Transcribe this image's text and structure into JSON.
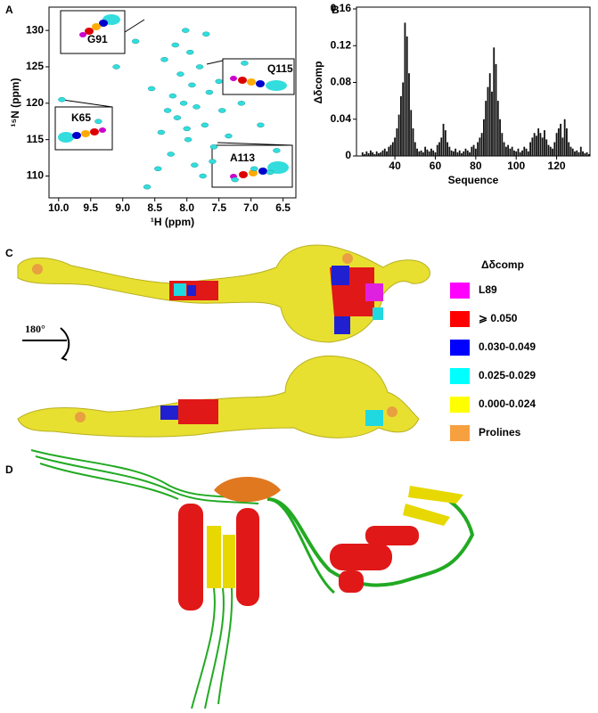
{
  "panels": {
    "labels": [
      "A",
      "B",
      "C",
      "D"
    ],
    "rotation": "180°"
  },
  "legend": {
    "title": "Δδcomp",
    "items": [
      {
        "label": "L89",
        "color": "#ff00ff"
      },
      {
        "label": "⩾ 0.050",
        "color": "#ff0000"
      },
      {
        "label": "0.030-0.049",
        "color": "#0000ff"
      },
      {
        "label": "0.025-0.029",
        "color": "#00ffff"
      },
      {
        "label": "0.000-0.024",
        "color": "#ffff00"
      },
      {
        "label": "Prolines",
        "color": "#f7a040"
      }
    ]
  },
  "chart_data": [
    {
      "type": "scatter",
      "xlabel": "¹H (ppm)",
      "ylabel": "¹⁵N (ppm)",
      "color": "#33dddd",
      "annotations": [
        "G91",
        "Q115",
        "K65",
        "A113"
      ],
      "xlim": [
        10.15,
        6.3
      ],
      "xticks": [
        {
          "value": 10,
          "label": "10.0"
        },
        9.5,
        {
          "value": 9,
          "label": "9.0"
        },
        8.5,
        {
          "value": 8,
          "label": "8.0"
        },
        7.5,
        {
          "value": 7,
          "label": "7.0"
        },
        6.5
      ],
      "ylim": [
        107,
        133.2
      ],
      "yticks": [
        110,
        115,
        120,
        125,
        130
      ],
      "x": [
        9.95,
        9.38,
        8.62,
        8.55,
        8.4,
        8.3,
        8.22,
        8.15,
        8.1,
        8.05,
        7.98,
        7.92,
        7.85,
        7.8,
        7.72,
        7.65,
        7.58,
        7.5,
        7.45,
        8.45,
        8.35,
        8.25,
        8.18,
        8.02,
        7.95,
        7.88,
        7.75,
        7.6,
        7.35,
        7.25,
        7.1,
        6.95,
        6.85,
        6.7,
        6.6,
        9.1,
        8.8,
        8.0,
        7.7,
        7.15
      ],
      "y": [
        120.5,
        117.5,
        108.5,
        122,
        116,
        119,
        121,
        118,
        124,
        120,
        115,
        122.5,
        119.5,
        125,
        117,
        121.5,
        114,
        123,
        119,
        111,
        126,
        113,
        128,
        130,
        127,
        111.5,
        110,
        112,
        115.5,
        109.5,
        125.5,
        111,
        117,
        110.5,
        113.5,
        125,
        128.5,
        116.5,
        129.5,
        120
      ]
    },
    {
      "type": "bar",
      "xlabel": "Sequence",
      "ylabel": "Δδcomp",
      "color": "#111111",
      "xlim": [
        21,
        136.5
      ],
      "xticks": [
        40,
        60,
        80,
        100,
        120
      ],
      "ylim": [
        0,
        0.16
      ],
      "yticks": [
        0,
        0.04,
        0.08,
        0.12,
        0.16
      ],
      "x": [
        24,
        25,
        26,
        27,
        28,
        29,
        30,
        31,
        32,
        33,
        34,
        35,
        36,
        37,
        38,
        39,
        40,
        41,
        42,
        43,
        44,
        45,
        46,
        47,
        48,
        49,
        50,
        51,
        52,
        53,
        54,
        55,
        56,
        57,
        58,
        59,
        60,
        61,
        62,
        63,
        64,
        65,
        66,
        67,
        68,
        69,
        70,
        71,
        72,
        73,
        74,
        75,
        76,
        77,
        78,
        79,
        80,
        81,
        82,
        83,
        84,
        85,
        86,
        87,
        88,
        89,
        90,
        91,
        92,
        93,
        94,
        95,
        96,
        97,
        98,
        99,
        100,
        101,
        102,
        103,
        104,
        105,
        106,
        107,
        108,
        109,
        110,
        111,
        112,
        113,
        114,
        115,
        116,
        117,
        118,
        119,
        120,
        121,
        122,
        123,
        124,
        125,
        126,
        127,
        128,
        129,
        130,
        131,
        132,
        133,
        134,
        135,
        136
      ],
      "values": [
        0.004,
        0.002,
        0.005,
        0.003,
        0.006,
        0.004,
        0.002,
        0.005,
        0.003,
        0.004,
        0.006,
        0.008,
        0.005,
        0.01,
        0.012,
        0.015,
        0.02,
        0.03,
        0.045,
        0.065,
        0.08,
        0.145,
        0.13,
        0.09,
        0.05,
        0.03,
        0.015,
        0.008,
        0.005,
        0.006,
        0.004,
        0.01,
        0.007,
        0.005,
        0.008,
        0.006,
        0.004,
        0.012,
        0.015,
        0.02,
        0.035,
        0.028,
        0.015,
        0.01,
        0.006,
        0.005,
        0.008,
        0.004,
        0.006,
        0.003,
        0.005,
        0.008,
        0.006,
        0.004,
        0.01,
        0.012,
        0.008,
        0.015,
        0.02,
        0.025,
        0.04,
        0.06,
        0.075,
        0.09,
        0.07,
        0.118,
        0.1,
        0.06,
        0.04,
        0.025,
        0.015,
        0.01,
        0.012,
        0.008,
        0.01,
        0.006,
        0.005,
        0.008,
        0.004,
        0.006,
        0.01,
        0.008,
        0.005,
        0.015,
        0.02,
        0.025,
        0.022,
        0.03,
        0.025,
        0.02,
        0.028,
        0.018,
        0.012,
        0.01,
        0.008,
        0.015,
        0.025,
        0.03,
        0.035,
        0.02,
        0.04,
        0.03,
        0.015,
        0.01,
        0.008,
        0.005,
        0.006,
        0.004,
        0.01,
        0.005,
        0.003,
        0.004,
        0.002
      ]
    }
  ]
}
